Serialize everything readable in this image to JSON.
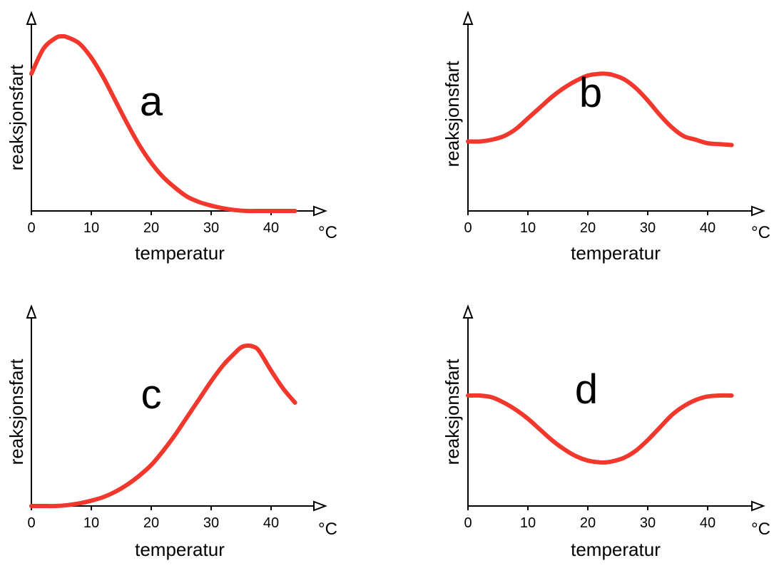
{
  "colors": {
    "curve": "#f2372d",
    "axis": "#000000"
  },
  "chart_data": [
    {
      "type": "line",
      "panel_label": "a",
      "xlabel": "temperatur",
      "ylabel": "reaksjonsfart",
      "x_unit": "°C",
      "xlim": [
        0,
        48
      ],
      "x_ticks": [
        0,
        10,
        20,
        30,
        40
      ],
      "ylim": [
        0,
        1
      ],
      "y_ticks_shown": false,
      "grid": false,
      "series": [
        {
          "x": [
            0,
            2,
            4,
            5,
            6,
            8,
            10,
            12,
            14,
            16,
            18,
            20,
            22,
            24,
            26,
            28,
            30,
            32,
            34,
            36,
            38,
            40,
            44
          ],
          "y": [
            0.77,
            0.91,
            0.97,
            0.98,
            0.975,
            0.94,
            0.86,
            0.75,
            0.62,
            0.49,
            0.37,
            0.27,
            0.19,
            0.13,
            0.08,
            0.05,
            0.03,
            0.015,
            0.005,
            0.0,
            0.0,
            0.0,
            0.0
          ]
        }
      ]
    },
    {
      "type": "line",
      "panel_label": "b",
      "xlabel": "temperatur",
      "ylabel": "reaksjonsfart",
      "x_unit": "°C",
      "xlim": [
        0,
        48
      ],
      "x_ticks": [
        0,
        10,
        20,
        30,
        40
      ],
      "ylim": [
        0,
        1
      ],
      "y_ticks_shown": false,
      "grid": false,
      "series": [
        {
          "x": [
            0,
            2,
            4,
            6,
            8,
            10,
            12,
            14,
            16,
            18,
            20,
            22,
            23,
            24,
            26,
            28,
            30,
            32,
            34,
            36,
            38,
            40,
            42,
            44
          ],
          "y": [
            0.39,
            0.39,
            0.4,
            0.42,
            0.46,
            0.52,
            0.58,
            0.64,
            0.69,
            0.73,
            0.76,
            0.77,
            0.77,
            0.765,
            0.74,
            0.69,
            0.62,
            0.54,
            0.47,
            0.42,
            0.4,
            0.38,
            0.375,
            0.37
          ]
        }
      ]
    },
    {
      "type": "line",
      "panel_label": "c",
      "xlabel": "temperatur",
      "ylabel": "reaksjonsfart",
      "x_unit": "°C",
      "xlim": [
        0,
        48
      ],
      "x_ticks": [
        0,
        10,
        20,
        30,
        40
      ],
      "ylim": [
        0,
        1
      ],
      "y_ticks_shown": false,
      "grid": false,
      "series": [
        {
          "x": [
            0,
            2,
            4,
            6,
            8,
            10,
            12,
            14,
            16,
            18,
            20,
            22,
            24,
            26,
            28,
            30,
            32,
            34,
            35,
            36,
            37,
            38,
            40,
            42,
            44
          ],
          "y": [
            0.0,
            0.0,
            0.0,
            0.005,
            0.015,
            0.03,
            0.05,
            0.08,
            0.12,
            0.17,
            0.23,
            0.31,
            0.4,
            0.5,
            0.6,
            0.7,
            0.79,
            0.86,
            0.89,
            0.9,
            0.895,
            0.87,
            0.76,
            0.66,
            0.58
          ]
        }
      ]
    },
    {
      "type": "line",
      "panel_label": "d",
      "xlabel": "temperatur",
      "ylabel": "reaksjonsfart",
      "x_unit": "°C",
      "xlim": [
        0,
        48
      ],
      "x_ticks": [
        0,
        10,
        20,
        30,
        40
      ],
      "ylim": [
        0,
        1
      ],
      "y_ticks_shown": false,
      "grid": false,
      "series": [
        {
          "x": [
            0,
            2,
            4,
            6,
            8,
            10,
            12,
            14,
            16,
            18,
            20,
            22,
            23,
            24,
            26,
            28,
            30,
            32,
            34,
            36,
            38,
            40,
            42,
            44
          ],
          "y": [
            0.62,
            0.62,
            0.61,
            0.58,
            0.54,
            0.49,
            0.43,
            0.37,
            0.32,
            0.28,
            0.255,
            0.245,
            0.245,
            0.25,
            0.27,
            0.31,
            0.37,
            0.44,
            0.51,
            0.56,
            0.595,
            0.615,
            0.62,
            0.62
          ]
        }
      ]
    }
  ]
}
